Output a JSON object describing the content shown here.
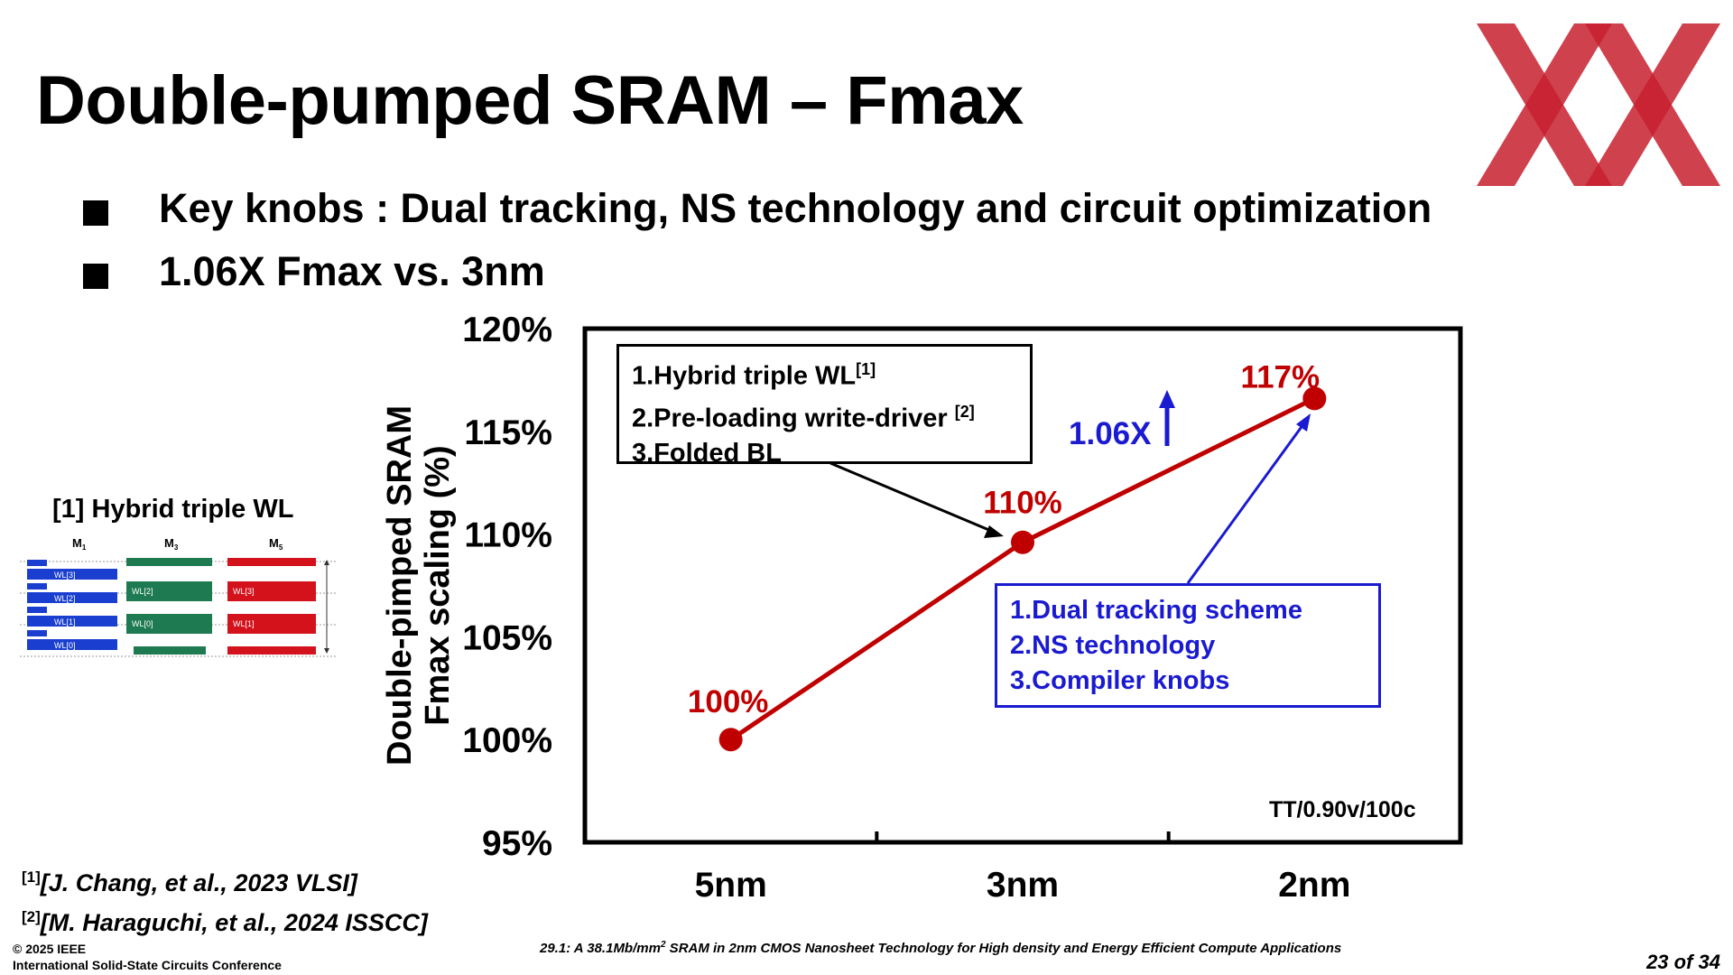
{
  "slide": {
    "title": "Double-pumped SRAM – Fmax",
    "bullets": [
      "Key knobs : Dual tracking, NS technology and circuit optimization",
      "1.06X Fmax vs. 3nm"
    ],
    "logo_color": "#c8202f"
  },
  "side_figure": {
    "title": "[1] Hybrid triple WL",
    "column_labels": [
      "M",
      "M",
      "M"
    ],
    "column_label_subscripts": [
      "1",
      "3",
      "5"
    ],
    "wl_labels_m1": [
      "WL[3]",
      "WL[2]",
      "WL[1]",
      "WL[0]"
    ],
    "wl_labels_m3": [
      "WL[2]",
      "WL[0]"
    ],
    "wl_labels_m5": [
      "WL[3]",
      "WL[1]"
    ],
    "colors": {
      "m1": "#1a3fd0",
      "m3": "#1e7a50",
      "m5": "#d4121c"
    }
  },
  "references": [
    {
      "num": "[1]",
      "text": "[J. Chang, et al., 2023 VLSI]"
    },
    {
      "num": "[2]",
      "text": "[M. Haraguchi, et al., 2024 ISSCC]"
    }
  ],
  "footer": {
    "copyright": "© 2025 IEEE",
    "conference": "International Solid-State Circuits Conference",
    "paper_prefix": "29.1: A 38.1Mb/mm",
    "paper_sup": "2",
    "paper_suffix": " SRAM in 2nm CMOS Nanosheet Technology for High density and Energy Efficient Compute Applications",
    "page": "23 of 34"
  },
  "chart_data": {
    "type": "line",
    "categories": [
      "5nm",
      "3nm",
      "2nm"
    ],
    "series": [
      {
        "values": [
          100,
          109.6,
          116.6
        ],
        "color": "#c00000"
      }
    ],
    "data_labels": [
      "100%",
      "110%",
      "117%"
    ],
    "ylabel_line1": "Double-pimped SRAM",
    "ylabel_line2": "Fmax scaling (%)",
    "ylim": [
      95,
      120
    ],
    "yticks": [
      95,
      100,
      105,
      110,
      115,
      120
    ],
    "ytick_labels": [
      "95%",
      "100%",
      "105%",
      "110%",
      "115%",
      "120%"
    ],
    "grid": false,
    "annotations": {
      "gain_label": "1.06X",
      "gain_color": "#1a1ad0",
      "condition": "TT/0.90v/100c",
      "box_3nm": [
        {
          "text": "1.Hybrid triple WL",
          "ref": "[1]"
        },
        {
          "text": "2.Pre-loading write-driver ",
          "ref": "[2]"
        },
        {
          "text": "3.Folded BL",
          "ref": ""
        }
      ],
      "box_2nm": [
        "1.Dual tracking scheme",
        "2.NS technology",
        "3.Compiler knobs"
      ]
    }
  }
}
